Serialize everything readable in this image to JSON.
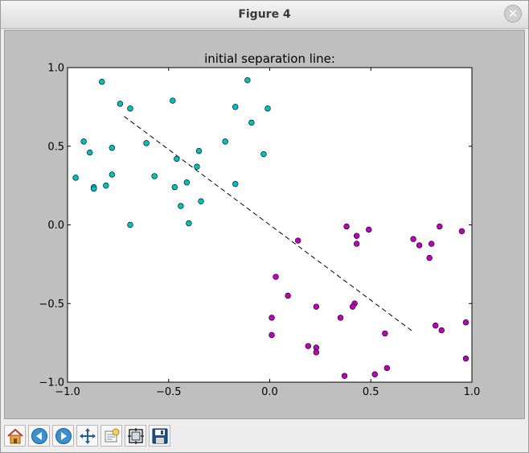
{
  "window": {
    "title": "Figure 4"
  },
  "toolbar": {
    "buttons": [
      {
        "name": "home-button",
        "icon": "home-icon"
      },
      {
        "name": "back-button",
        "icon": "arrow-left-icon"
      },
      {
        "name": "forward-button",
        "icon": "arrow-right-icon"
      },
      {
        "name": "pan-button",
        "icon": "move-icon"
      },
      {
        "name": "zoom-button",
        "icon": "zoom-rect-icon"
      },
      {
        "name": "subplots-button",
        "icon": "subplots-icon"
      },
      {
        "name": "save-button",
        "icon": "floppy-disk-icon"
      }
    ]
  },
  "chart_data": {
    "type": "scatter",
    "title": "initial separation line:",
    "xlabel": "",
    "ylabel": "",
    "xlim": [
      -1.0,
      1.0
    ],
    "ylim": [
      -1.0,
      1.0
    ],
    "xticks": [
      "−1.0",
      "−0.5",
      "0.0",
      "0.5",
      "1.0"
    ],
    "yticks": [
      "−1.0",
      "−0.5",
      "0.0",
      "0.5",
      "1.0"
    ],
    "xtick_values": [
      -1.0,
      -0.5,
      0.0,
      0.5,
      1.0
    ],
    "ytick_values": [
      -1.0,
      -0.5,
      0.0,
      0.5,
      1.0
    ],
    "grid": false,
    "series": [
      {
        "color": "#00bfbf",
        "points": [
          [
            -0.83,
            0.91
          ],
          [
            -0.74,
            0.77
          ],
          [
            -0.69,
            0.74
          ],
          [
            -0.48,
            0.79
          ],
          [
            -0.11,
            0.92
          ],
          [
            -0.17,
            0.75
          ],
          [
            -0.09,
            0.65
          ],
          [
            -0.01,
            0.74
          ],
          [
            -0.92,
            0.53
          ],
          [
            -0.89,
            0.46
          ],
          [
            -0.78,
            0.49
          ],
          [
            -0.61,
            0.52
          ],
          [
            -0.96,
            0.3
          ],
          [
            -0.87,
            0.24
          ],
          [
            -0.87,
            0.23
          ],
          [
            -0.81,
            0.25
          ],
          [
            -0.78,
            0.32
          ],
          [
            -0.57,
            0.31
          ],
          [
            -0.46,
            0.42
          ],
          [
            -0.47,
            0.24
          ],
          [
            -0.41,
            0.27
          ],
          [
            -0.36,
            0.37
          ],
          [
            -0.35,
            0.47
          ],
          [
            -0.22,
            0.53
          ],
          [
            -0.03,
            0.45
          ],
          [
            -0.17,
            0.26
          ],
          [
            -0.34,
            0.15
          ],
          [
            -0.44,
            0.12
          ],
          [
            -0.4,
            0.01
          ],
          [
            -0.69,
            0.0
          ]
        ]
      },
      {
        "color": "#bf00bf",
        "points": [
          [
            0.38,
            -0.01
          ],
          [
            0.43,
            -0.07
          ],
          [
            0.49,
            -0.03
          ],
          [
            0.43,
            -0.12
          ],
          [
            0.14,
            -0.1
          ],
          [
            0.71,
            -0.09
          ],
          [
            0.74,
            -0.13
          ],
          [
            0.8,
            -0.12
          ],
          [
            0.84,
            -0.01
          ],
          [
            0.95,
            -0.04
          ],
          [
            0.79,
            -0.21
          ],
          [
            0.03,
            -0.33
          ],
          [
            0.09,
            -0.45
          ],
          [
            0.23,
            -0.52
          ],
          [
            0.42,
            -0.5
          ],
          [
            0.41,
            -0.52
          ],
          [
            0.35,
            -0.59
          ],
          [
            0.01,
            -0.59
          ],
          [
            0.01,
            -0.7
          ],
          [
            0.57,
            -0.69
          ],
          [
            0.82,
            -0.64
          ],
          [
            0.85,
            -0.67
          ],
          [
            0.97,
            -0.62
          ],
          [
            0.19,
            -0.77
          ],
          [
            0.23,
            -0.78
          ],
          [
            0.23,
            -0.81
          ],
          [
            0.58,
            -0.91
          ],
          [
            0.97,
            -0.85
          ],
          [
            0.37,
            -0.96
          ],
          [
            0.52,
            -0.95
          ]
        ]
      }
    ],
    "line": {
      "style": "dashed",
      "color": "#000000",
      "points": [
        [
          -0.72,
          0.69
        ],
        [
          0.71,
          -0.68
        ]
      ]
    }
  }
}
